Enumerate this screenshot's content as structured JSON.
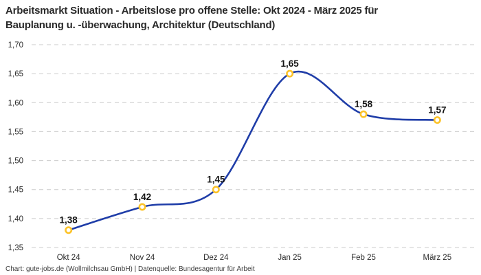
{
  "title": {
    "full": "Arbeitsmarkt Situation - Arbeitslose pro offene Stelle: Okt 2024 - März 2025 für Bauplanung u. -überwachung, Architektur (Deutschland)",
    "line1": "Arbeitsmarkt Situation - Arbeitslose pro offene Stelle: Okt 2024 - März 2025 für",
    "line2": "Bauplanung u. -überwachung, Architektur (Deutschland)"
  },
  "footer": {
    "text": "Chart: gute-jobs.de (Wollmilchsau GmbH) | Datenquelle: Bundesagentur für Arbeit"
  },
  "chart_data": {
    "type": "line",
    "title": "Arbeitsmarkt Situation - Arbeitslose pro offene Stelle: Okt 2024 - März 2025 für Bauplanung u. -überwachung, Architektur (Deutschland)",
    "xlabel": "",
    "ylabel": "",
    "categories": [
      "Okt 24",
      "Nov 24",
      "Dez 24",
      "Jan 25",
      "Feb 25",
      "März 25"
    ],
    "values": [
      1.38,
      1.42,
      1.45,
      1.65,
      1.58,
      1.57
    ],
    "point_labels": [
      "1,38",
      "1,42",
      "1,45",
      "1,65",
      "1,58",
      "1,57"
    ],
    "ylim": [
      1.35,
      1.7
    ],
    "y_ticks": [
      1.35,
      1.4,
      1.45,
      1.5,
      1.55,
      1.6,
      1.65,
      1.7
    ],
    "y_tick_labels": [
      "1,35",
      "1,40",
      "1,45",
      "1,50",
      "1,55",
      "1,60",
      "1,65",
      "1,70"
    ],
    "grid": "horizontal-dashed",
    "legend": "none",
    "colors": {
      "line": "#1f3da8",
      "marker_ring": "#fcc32a",
      "marker_fill": "#ffffff",
      "grid": "#cbcbcb",
      "point_label": "#141414",
      "tick_label": "#2b2b2b"
    }
  }
}
